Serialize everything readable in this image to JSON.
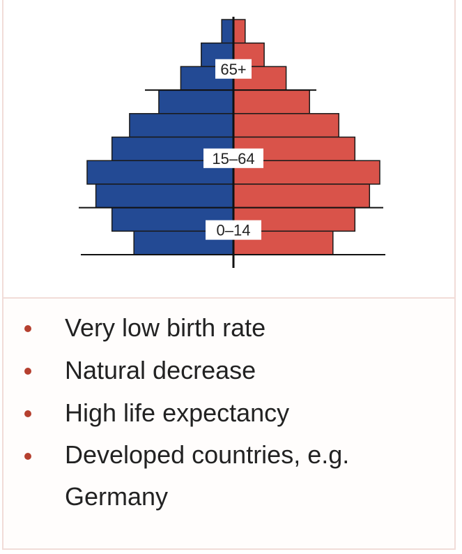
{
  "chart_data": {
    "type": "bar",
    "subtype": "population-pyramid",
    "orientation": "horizontal",
    "rows_top_to_bottom": 10,
    "male_values": [
      8,
      22,
      36,
      51,
      71,
      83,
      100,
      94,
      83,
      68
    ],
    "female_values": [
      8,
      21,
      36,
      52,
      72,
      83,
      100,
      93,
      83,
      68
    ],
    "value_units": "relative (max = 100)",
    "group_labels": [
      "65+",
      "15–64",
      "0–14"
    ],
    "colors": {
      "male": "#234a94",
      "female": "#d9534a",
      "axis": "#111111"
    }
  },
  "list": {
    "bullet_color": "#b5402f",
    "items": [
      "Very low birth rate",
      "Natural decrease",
      "High life expectancy",
      "Developed countries, e.g. Germany"
    ]
  }
}
